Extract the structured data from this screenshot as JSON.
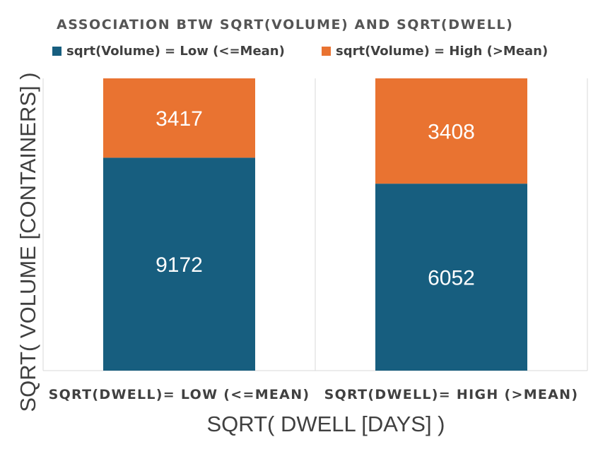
{
  "chart_data": {
    "type": "bar",
    "stacked": true,
    "stacked_percent": true,
    "title": "ASSOCIATION BTW SQRT(VOLUME) AND SQRT(DWELL)",
    "categories": [
      "SQRT(DWELL)= LOW (<=MEAN)",
      "SQRT(DWELL)= HIGH (>MEAN)"
    ],
    "series": [
      {
        "name": "sqrt(Volume) = Low (<=Mean)",
        "values": [
          9172,
          6052
        ],
        "color": "#175e7f"
      },
      {
        "name": "sqrt(Volume) = High (>Mean)",
        "values": [
          3417,
          3408
        ],
        "color": "#e97331"
      }
    ],
    "xlabel": "SQRT( DWELL [DAYS] )",
    "ylabel": "SQRT( VOLUME [CONTAINERS] )",
    "legend": "top",
    "grid": false
  }
}
